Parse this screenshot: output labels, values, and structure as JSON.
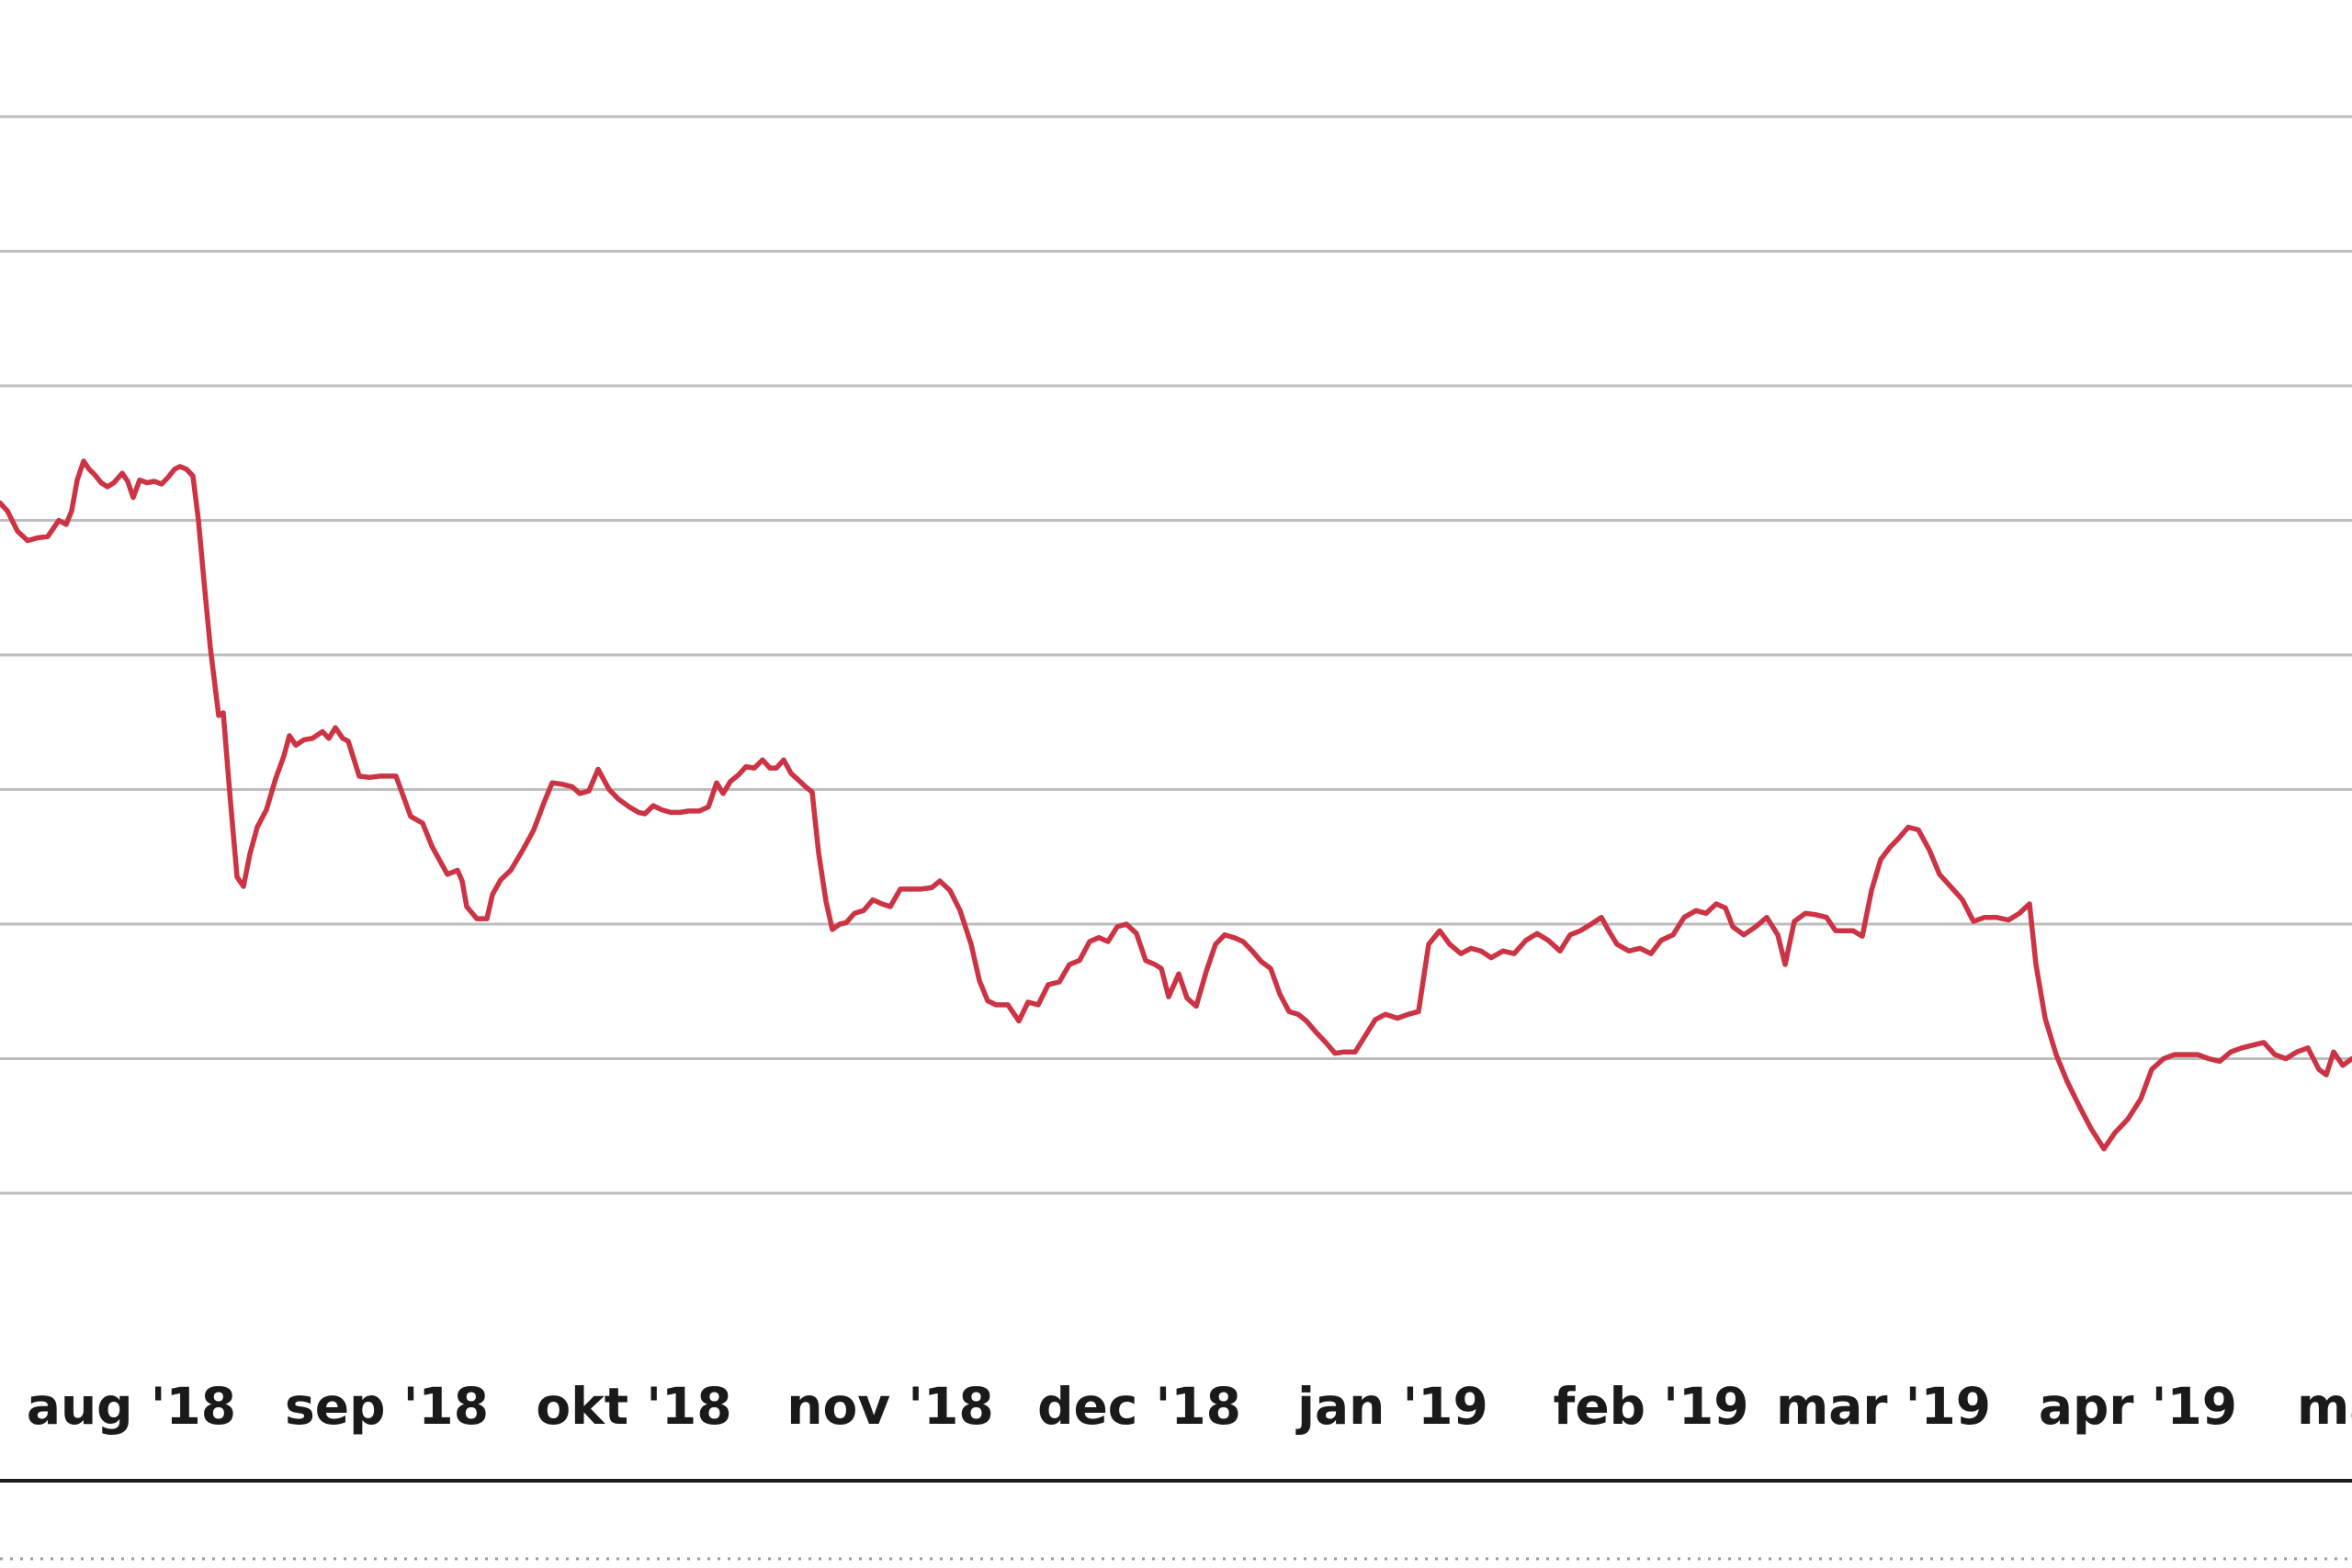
{
  "chart_data": {
    "type": "line",
    "title": "",
    "xlabel": "",
    "ylabel": "",
    "grid": true,
    "x_tick_labels": [
      "aug '18",
      "sep '18",
      "okt '18",
      "nov '18",
      "dec '18",
      "jan '19",
      "feb '19",
      "mar '19",
      "apr '19",
      "ma"
    ],
    "ylim": [
      0,
      9
    ],
    "y_gridlines": [
      1,
      2,
      3,
      4,
      5,
      6,
      7,
      8,
      9
    ],
    "colors": {
      "series": "#cc3344",
      "grid": "#bdbdbd",
      "axis": "#1a1a1a",
      "text": "#1a1a1a"
    },
    "series": [
      {
        "name": "",
        "points": [
          [
            0,
            6.13
          ],
          [
            8,
            6.07
          ],
          [
            19,
            5.92
          ],
          [
            30,
            5.85
          ],
          [
            41,
            5.87
          ],
          [
            52,
            5.88
          ],
          [
            64,
            6.0
          ],
          [
            72,
            5.97
          ],
          [
            78,
            6.07
          ],
          [
            84,
            6.3
          ],
          [
            91,
            6.44
          ],
          [
            97,
            6.38
          ],
          [
            103,
            6.34
          ],
          [
            110,
            6.28
          ],
          [
            117,
            6.25
          ],
          [
            124,
            6.28
          ],
          [
            133,
            6.35
          ],
          [
            139,
            6.29
          ],
          [
            145,
            6.17
          ],
          [
            152,
            6.3
          ],
          [
            160,
            6.28
          ],
          [
            168,
            6.29
          ],
          [
            176,
            6.27
          ],
          [
            183,
            6.32
          ],
          [
            190,
            6.38
          ],
          [
            196,
            6.4
          ],
          [
            203,
            6.38
          ],
          [
            210,
            6.33
          ],
          [
            216,
            6.0
          ],
          [
            222,
            5.55
          ],
          [
            229,
            5.05
          ],
          [
            238,
            4.55
          ],
          [
            243,
            4.57
          ],
          [
            250,
            3.98
          ],
          [
            258,
            3.35
          ],
          [
            265,
            3.28
          ],
          [
            272,
            3.52
          ],
          [
            280,
            3.72
          ],
          [
            290,
            3.85
          ],
          [
            300,
            4.08
          ],
          [
            309,
            4.25
          ],
          [
            315,
            4.4
          ],
          [
            322,
            4.33
          ],
          [
            331,
            4.37
          ],
          [
            340,
            4.38
          ],
          [
            351,
            4.43
          ],
          [
            358,
            4.38
          ],
          [
            365,
            4.46
          ],
          [
            373,
            4.38
          ],
          [
            379,
            4.36
          ],
          [
            391,
            4.1
          ],
          [
            402,
            4.09
          ],
          [
            414,
            4.1
          ],
          [
            431,
            4.1
          ],
          [
            447,
            3.8
          ],
          [
            460,
            3.75
          ],
          [
            470,
            3.58
          ],
          [
            478,
            3.48
          ],
          [
            487,
            3.37
          ],
          [
            498,
            3.4
          ],
          [
            503,
            3.32
          ],
          [
            508,
            3.13
          ],
          [
            519,
            3.04
          ],
          [
            530,
            3.04
          ],
          [
            536,
            3.22
          ],
          [
            545,
            3.33
          ],
          [
            556,
            3.4
          ],
          [
            569,
            3.55
          ],
          [
            581,
            3.7
          ],
          [
            592,
            3.9
          ],
          [
            601,
            4.05
          ],
          [
            611,
            4.04
          ],
          [
            623,
            4.02
          ],
          [
            631,
            3.97
          ],
          [
            641,
            3.99
          ],
          [
            651,
            4.15
          ],
          [
            663,
            4.0
          ],
          [
            673,
            3.93
          ],
          [
            685,
            3.87
          ],
          [
            695,
            3.83
          ],
          [
            702,
            3.82
          ],
          [
            711,
            3.88
          ],
          [
            720,
            3.85
          ],
          [
            730,
            3.83
          ],
          [
            740,
            3.83
          ],
          [
            750,
            3.84
          ],
          [
            761,
            3.84
          ],
          [
            771,
            3.87
          ],
          [
            780,
            4.05
          ],
          [
            787,
            3.97
          ],
          [
            795,
            4.06
          ],
          [
            804,
            4.11
          ],
          [
            812,
            4.17
          ],
          [
            821,
            4.16
          ],
          [
            830,
            4.22
          ],
          [
            838,
            4.16
          ],
          [
            845,
            4.16
          ],
          [
            853,
            4.22
          ],
          [
            861,
            4.12
          ],
          [
            869,
            4.07
          ],
          [
            877,
            4.02
          ],
          [
            884,
            3.98
          ],
          [
            891,
            3.53
          ],
          [
            899,
            3.17
          ],
          [
            906,
            2.96
          ],
          [
            914,
            3.0
          ],
          [
            921,
            3.01
          ],
          [
            930,
            3.08
          ],
          [
            940,
            3.1
          ],
          [
            950,
            3.18
          ],
          [
            960,
            3.15
          ],
          [
            969,
            3.13
          ],
          [
            980,
            3.26
          ],
          [
            990,
            3.26
          ],
          [
            1002,
            3.26
          ],
          [
            1014,
            3.27
          ],
          [
            1023,
            3.32
          ],
          [
            1034,
            3.25
          ],
          [
            1045,
            3.1
          ],
          [
            1057,
            2.85
          ],
          [
            1066,
            2.58
          ],
          [
            1075,
            2.43
          ],
          [
            1084,
            2.4
          ],
          [
            1097,
            2.4
          ],
          [
            1109,
            2.28
          ],
          [
            1119,
            2.42
          ],
          [
            1130,
            2.4
          ],
          [
            1141,
            2.55
          ],
          [
            1153,
            2.57
          ],
          [
            1164,
            2.7
          ],
          [
            1175,
            2.73
          ],
          [
            1186,
            2.87
          ],
          [
            1196,
            2.9
          ],
          [
            1206,
            2.87
          ],
          [
            1216,
            2.98
          ],
          [
            1226,
            3.0
          ],
          [
            1237,
            2.93
          ],
          [
            1247,
            2.73
          ],
          [
            1257,
            2.7
          ],
          [
            1264,
            2.67
          ],
          [
            1272,
            2.46
          ],
          [
            1283,
            2.63
          ],
          [
            1292,
            2.45
          ],
          [
            1302,
            2.39
          ],
          [
            1313,
            2.65
          ],
          [
            1323,
            2.85
          ],
          [
            1333,
            2.92
          ],
          [
            1343,
            2.9
          ],
          [
            1353,
            2.87
          ],
          [
            1363,
            2.8
          ],
          [
            1373,
            2.72
          ],
          [
            1383,
            2.67
          ],
          [
            1393,
            2.48
          ],
          [
            1403,
            2.35
          ],
          [
            1413,
            2.33
          ],
          [
            1422,
            2.28
          ],
          [
            1432,
            2.2
          ],
          [
            1443,
            2.12
          ],
          [
            1453,
            2.04
          ],
          [
            1463,
            2.05
          ],
          [
            1475,
            2.05
          ],
          [
            1486,
            2.17
          ],
          [
            1497,
            2.29
          ],
          [
            1508,
            2.33
          ],
          [
            1521,
            2.3
          ],
          [
            1533,
            2.33
          ],
          [
            1544,
            2.35
          ],
          [
            1555,
            2.85
          ],
          [
            1567,
            2.95
          ],
          [
            1578,
            2.85
          ],
          [
            1590,
            2.78
          ],
          [
            1601,
            2.82
          ],
          [
            1612,
            2.8
          ],
          [
            1623,
            2.75
          ],
          [
            1636,
            2.8
          ],
          [
            1648,
            2.78
          ],
          [
            1661,
            2.88
          ],
          [
            1673,
            2.93
          ],
          [
            1685,
            2.88
          ],
          [
            1698,
            2.8
          ],
          [
            1709,
            2.92
          ],
          [
            1720,
            2.95
          ],
          [
            1732,
            3.0
          ],
          [
            1743,
            3.05
          ],
          [
            1751,
            2.95
          ],
          [
            1760,
            2.85
          ],
          [
            1773,
            2.8
          ],
          [
            1785,
            2.82
          ],
          [
            1797,
            2.78
          ],
          [
            1808,
            2.88
          ],
          [
            1821,
            2.92
          ],
          [
            1833,
            3.05
          ],
          [
            1846,
            3.1
          ],
          [
            1857,
            3.08
          ],
          [
            1868,
            3.15
          ],
          [
            1878,
            3.12
          ],
          [
            1886,
            2.98
          ],
          [
            1898,
            2.92
          ],
          [
            1911,
            2.98
          ],
          [
            1923,
            3.05
          ],
          [
            1935,
            2.92
          ],
          [
            1943,
            2.7
          ],
          [
            1953,
            3.02
          ],
          [
            1965,
            3.08
          ],
          [
            1976,
            3.07
          ],
          [
            1988,
            3.05
          ],
          [
            1998,
            2.95
          ],
          [
            2008,
            2.95
          ],
          [
            2017,
            2.95
          ],
          [
            2027,
            2.91
          ],
          [
            2037,
            3.25
          ],
          [
            2047,
            3.48
          ],
          [
            2057,
            3.57
          ],
          [
            2067,
            3.64
          ],
          [
            2077,
            3.72
          ],
          [
            2088,
            3.7
          ],
          [
            2100,
            3.55
          ],
          [
            2111,
            3.37
          ],
          [
            2123,
            3.28
          ],
          [
            2136,
            3.18
          ],
          [
            2148,
            3.02
          ],
          [
            2160,
            3.05
          ],
          [
            2173,
            3.05
          ],
          [
            2186,
            3.03
          ],
          [
            2198,
            3.08
          ],
          [
            2209,
            3.15
          ],
          [
            2216,
            2.7
          ],
          [
            2226,
            2.3
          ],
          [
            2238,
            2.03
          ],
          [
            2250,
            1.83
          ],
          [
            2263,
            1.65
          ],
          [
            2276,
            1.48
          ],
          [
            2290,
            1.33
          ],
          [
            2302,
            1.45
          ],
          [
            2316,
            1.55
          ],
          [
            2330,
            1.7
          ],
          [
            2342,
            1.92
          ],
          [
            2355,
            2.0
          ],
          [
            2367,
            2.03
          ],
          [
            2380,
            2.03
          ],
          [
            2392,
            2.03
          ],
          [
            2404,
            2.0
          ],
          [
            2416,
            1.98
          ],
          [
            2428,
            2.05
          ],
          [
            2440,
            2.08
          ],
          [
            2452,
            2.1
          ],
          [
            2464,
            2.12
          ],
          [
            2476,
            2.03
          ],
          [
            2488,
            2.0
          ],
          [
            2500,
            2.05
          ],
          [
            2512,
            2.08
          ],
          [
            2524,
            1.92
          ],
          [
            2532,
            1.88
          ],
          [
            2540,
            2.05
          ],
          [
            2550,
            1.95
          ],
          [
            2560,
            2.0
          ]
        ]
      }
    ]
  }
}
